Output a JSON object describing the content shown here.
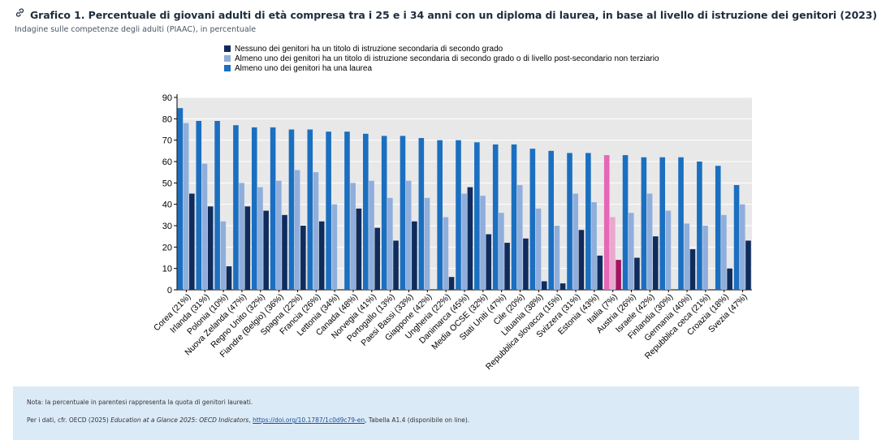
{
  "header": {
    "title": "Grafico 1. Percentuale di giovani adulti di età compresa tra i 25 e i 34 anni con un diploma di laurea, in base al livello di istruzione dei genitori (2023)",
    "subtitle": "Indagine sulle competenze degli adulti (PIAAC), in percentuale"
  },
  "note": {
    "line1": "Nota: la percentuale in parentesi rappresenta la quota di genitori laureati.",
    "source_prefix": "Per i dati, cfr. OECD (2025) ",
    "source_title": "Education at a Glance 2025: OECD Indicators",
    "source_sep": ", ",
    "source_link": "https://doi.org/10.1787/1c0d9c79-en",
    "source_suffix": ", Tabella A1.4 (disponibile on line)."
  },
  "colors": {
    "none": "#0f2c5c",
    "upper_secondary": "#8faedc",
    "tertiary": "#1b6fc0",
    "hl_none": "#a3155f",
    "hl_upper_secondary": "#eaa8cf",
    "hl_tertiary": "#e667b6",
    "plot_bg": "#e8e8e8",
    "grid": "#ffffff"
  },
  "chart_data": {
    "type": "bar",
    "title": "",
    "xlabel": "",
    "ylabel": "",
    "ylim": [
      0,
      90
    ],
    "yticks": [
      0,
      10,
      20,
      30,
      40,
      50,
      60,
      70,
      80,
      90
    ],
    "legend_position": "top",
    "highlight_category": "Italia (7%)",
    "categories": [
      "Corea (21%)",
      "Irlanda (31%)",
      "Polonia (10%)",
      "Nuova Zelanda (47%)",
      "Regno Unito (32%)",
      "Fiandre (Belgio) (36%)",
      "Spagna (22%)",
      "Francia (26%)",
      "Lettonia (34%)",
      "Canada (48%)",
      "Norvegia (41%)",
      "Portogallo (13%)",
      "Paesi Bassi (33%)",
      "Giappone (42%)",
      "Ungheria (22%)",
      "Danimarca (45%)",
      "Media OCSE (32%)",
      "Stati Uniti (47%)",
      "Cile (20%)",
      "Lituania (38%)",
      "Repubblica slovacca (15%)",
      "Svizzera (31%)",
      "Estonia (43%)",
      "Italia (7%)",
      "Austria (26%)",
      "Israele (42%)",
      "Finlandia (30%)",
      "Germania (40%)",
      "Repubblica ceca (21%)",
      "Croazia (18%)",
      "Svezia (47%)"
    ],
    "series": [
      {
        "name": "Nessuno dei genitori ha un titolo di istruzione secondaria di secondo grado",
        "values": [
          45,
          39,
          11,
          39,
          37,
          35,
          30,
          32,
          null,
          38,
          29,
          23,
          32,
          null,
          6,
          48,
          26,
          22,
          24,
          4,
          3,
          28,
          16,
          14,
          15,
          25,
          null,
          19,
          null,
          10,
          23
        ]
      },
      {
        "name": "Almeno uno dei genitori ha un titolo di istruzione secondaria di secondo grado o di livello post-secondario non terziario",
        "values": [
          78,
          59,
          32,
          50,
          48,
          51,
          56,
          55,
          40,
          50,
          51,
          43,
          51,
          43,
          34,
          45,
          44,
          36,
          49,
          38,
          30,
          45,
          41,
          34,
          36,
          45,
          37,
          31,
          30,
          35,
          40
        ]
      },
      {
        "name": "Almeno uno dei genitori ha una laurea",
        "values": [
          85,
          79,
          79,
          77,
          76,
          76,
          75,
          75,
          74,
          74,
          73,
          72,
          72,
          71,
          70,
          70,
          69,
          68,
          68,
          66,
          65,
          64,
          64,
          63,
          63,
          62,
          62,
          62,
          60,
          58,
          49
        ]
      }
    ]
  }
}
